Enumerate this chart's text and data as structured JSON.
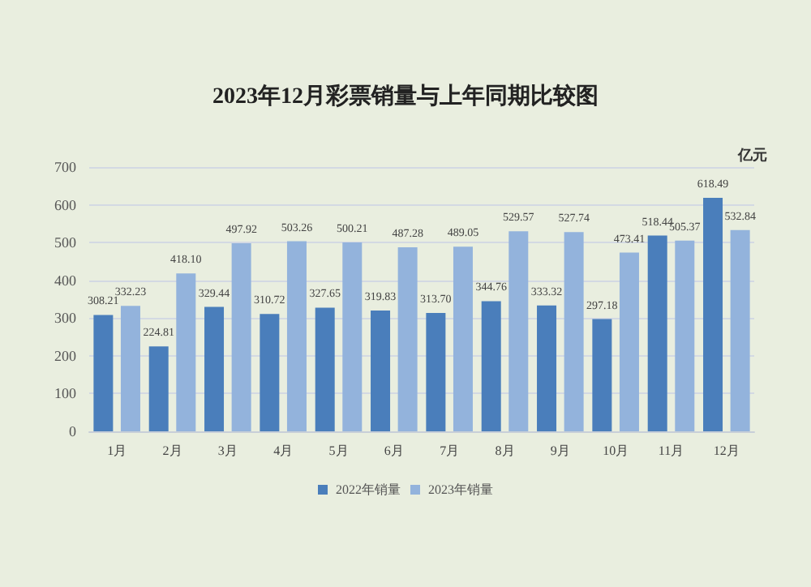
{
  "chart_data": {
    "type": "bar",
    "title": "2023年12月彩票销量与上年同期比较图",
    "ylabel": "亿元",
    "categories": [
      "1月",
      "2月",
      "3月",
      "4月",
      "5月",
      "6月",
      "7月",
      "8月",
      "9月",
      "10月",
      "11月",
      "12月"
    ],
    "series": [
      {
        "name": "2022年销量",
        "color": "#4a7ebb",
        "values": [
          308.21,
          224.81,
          329.44,
          310.72,
          327.65,
          319.83,
          313.7,
          344.76,
          333.32,
          297.18,
          518.44,
          618.49
        ],
        "value_labels": [
          "308.21",
          "224.81",
          "329.44",
          "310.72",
          "327.65",
          "319.83",
          "313.70",
          "344.76",
          "333.32",
          "297.18",
          "518.44",
          "618.49"
        ]
      },
      {
        "name": "2023年销量",
        "color": "#93b3dc",
        "values": [
          332.23,
          418.1,
          497.92,
          503.26,
          500.21,
          487.28,
          489.05,
          529.57,
          527.74,
          473.41,
          505.37,
          532.84
        ],
        "value_labels": [
          "332.23",
          "418.10",
          "497.92",
          "503.26",
          "500.21",
          "487.28",
          "489.05",
          "529.57",
          "527.74",
          "473.41",
          "505.37",
          "532.84"
        ]
      }
    ],
    "ylim": [
      0,
      700
    ],
    "yticks": [
      0,
      100,
      200,
      300,
      400,
      500,
      600,
      700
    ],
    "grid": "y",
    "legend": "bottom"
  }
}
